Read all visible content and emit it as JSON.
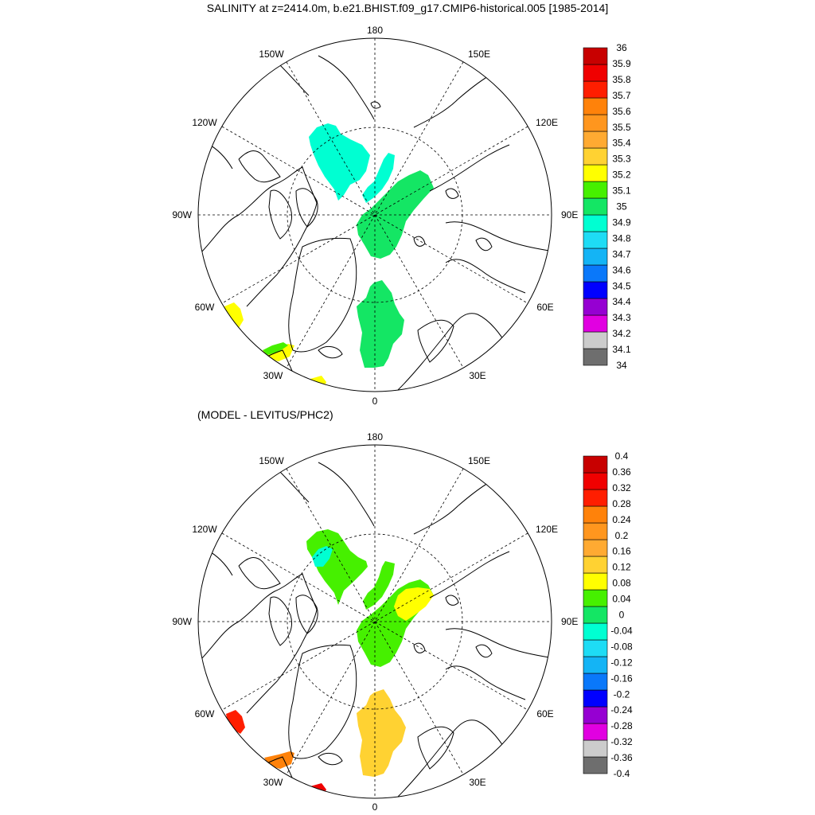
{
  "title": "SALINITY at z=2414.0m, b.e21.BHIST.f09_g17.CMIP6-historical.005 [1985-2014]",
  "subtitle": "(MODEL - LEVITUS/PHC2)",
  "longitude_labels": {
    "north": "180",
    "south": "0",
    "west": "90W",
    "east": "90E",
    "nw_upper": "150W",
    "ne_upper": "150E",
    "nw_lower": "120W",
    "ne_lower": "120E",
    "sw_upper": "60W",
    "se_upper": "60E",
    "sw_lower": "30W",
    "se_lower": "30E"
  },
  "colorbar_colors": [
    "#6e6e6e",
    "#cccccc",
    "#e100e1",
    "#9600d2",
    "#0000ff",
    "#0a78fa",
    "#14b4f5",
    "#1edcf5",
    "#00ffd2",
    "#14e664",
    "#46f000",
    "#ffff00",
    "#ffd232",
    "#ffaa32",
    "#ff961e",
    "#ff820a",
    "#ff1e00",
    "#f00000",
    "#c80000"
  ],
  "colorbars": [
    {
      "labels": [
        "34",
        "34.1",
        "34.2",
        "34.3",
        "34.4",
        "34.5",
        "34.6",
        "34.7",
        "34.8",
        "34.9",
        "35",
        "35.1",
        "35.2",
        "35.3",
        "35.4",
        "35.5",
        "35.6",
        "35.7",
        "35.8",
        "35.9",
        "36"
      ]
    },
    {
      "labels": [
        "-0.4",
        "-0.36",
        "-0.32",
        "-0.28",
        "-0.24",
        "-0.2",
        "-0.16",
        "-0.12",
        "-0.08",
        "-0.04",
        "0",
        "0.04",
        "0.08",
        "0.12",
        "0.16",
        "0.2",
        "0.24",
        "0.28",
        "0.32",
        "0.36",
        "0.4"
      ]
    }
  ],
  "panels": [
    {
      "name": "model-salinity",
      "regions": [
        {
          "name": "canada-basin-patch",
          "color": "#00ffd2"
        },
        {
          "name": "makarov-strip",
          "color": "#00ffd2"
        },
        {
          "name": "eurasian-basin",
          "color": "#14e664"
        },
        {
          "name": "greenland-sea",
          "color": "#14e664"
        },
        {
          "name": "labrador-patch",
          "color": "#ffff00"
        },
        {
          "name": "iceland-patch",
          "color": "#ffff00"
        },
        {
          "name": "iceland-green",
          "color": "#46f000"
        },
        {
          "name": "atlantic-patch",
          "color": "#ffff00"
        }
      ]
    },
    {
      "name": "model-minus-levitus",
      "regions": [
        {
          "name": "canada-basin-patch",
          "color": "#46f000"
        },
        {
          "name": "canada-teal-core",
          "color": "#00ffd2"
        },
        {
          "name": "makarov-strip",
          "color": "#46f000"
        },
        {
          "name": "eurasian-basin",
          "color": "#46f000"
        },
        {
          "name": "laptev-yellow",
          "color": "#ffff00"
        },
        {
          "name": "greenland-sea",
          "color": "#ffd232"
        },
        {
          "name": "labrador-patch",
          "color": "#ff1e00"
        },
        {
          "name": "iceland-patch",
          "color": "#ff820a"
        },
        {
          "name": "atlantic-patch",
          "color": "#f00000"
        }
      ]
    }
  ]
}
